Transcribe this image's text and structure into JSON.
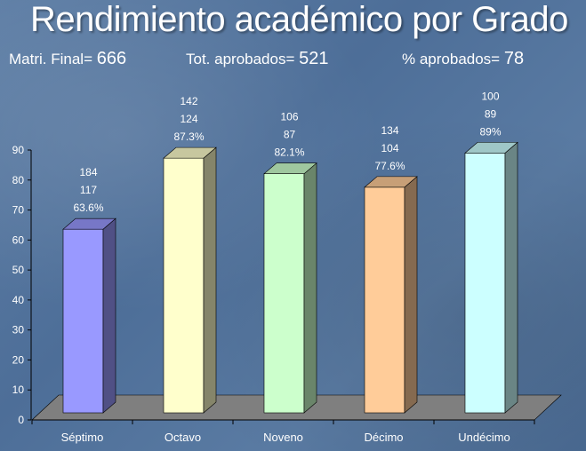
{
  "title": "Rendimiento académico por Grado",
  "stats": {
    "matricula_label": "Matri. Final=",
    "matricula_value": "666",
    "aprobados_label": "Tot. aprobados=",
    "aprobados_value": "521",
    "porcentaje_label": "% aprobados=",
    "porcentaje_value": "78"
  },
  "colors": {
    "Séptimo": "#9999ff",
    "Octavo": "#ffffcc",
    "Noveno": "#ccffcc",
    "Décimo": "#ffcc99",
    "Undécimo": "#ccffff"
  },
  "chart_data": {
    "type": "bar",
    "title": "Rendimiento académico por Grado",
    "categories": [
      "Séptimo",
      "Octavo",
      "Noveno",
      "Décimo",
      "Undécimo"
    ],
    "values": [
      63.6,
      87.3,
      82.1,
      77.6,
      89
    ],
    "annotations": [
      [
        "184",
        "117",
        "63.6%"
      ],
      [
        "142",
        "124",
        "87.3%"
      ],
      [
        "106",
        "87",
        "82.1%"
      ],
      [
        "134",
        "104",
        "77.6%"
      ],
      [
        "100",
        "89",
        "89%"
      ]
    ],
    "yticks": [
      "0",
      "10",
      "20",
      "30",
      "40",
      "50",
      "60",
      "70",
      "80",
      "90"
    ],
    "ylim": [
      0,
      90
    ],
    "xlabel": "",
    "ylabel": "",
    "grid": false,
    "legend": "none"
  }
}
